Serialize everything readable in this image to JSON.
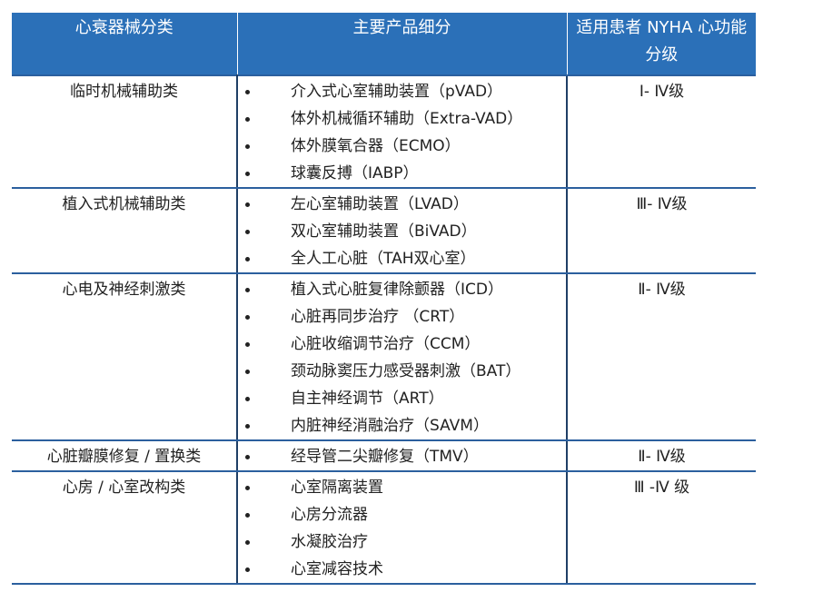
{
  "table": {
    "header": [
      "心衰器械分类",
      "主要产品细分",
      "适用患者 NYHA 心功能分级"
    ],
    "rows": [
      {
        "category": "临时机械辅助类",
        "items": [
          "介入式心室辅助装置（pVAD）",
          "体外机械循环辅助（Extra-VAD）",
          "体外膜氧合器（ECMO）",
          "球囊反搏（IABP）"
        ],
        "grade": "Ⅰ- Ⅳ级"
      },
      {
        "category": "植入式机械辅助类",
        "items": [
          "左心室辅助装置（LVAD）",
          "双心室辅助装置（BiVAD）",
          "全人工心脏（TAH双心室）"
        ],
        "grade": "Ⅲ- Ⅳ级"
      },
      {
        "category": "心电及神经刺激类",
        "items": [
          "植入式心脏复律除颤器（ICD）",
          "心脏再同步治疗 （CRT）",
          "心脏收缩调节治疗（CCM）",
          "颈动脉窦压力感受器刺激（BAT）",
          "自主神经调节（ART）",
          "内脏神经消融治疗（SAVM）"
        ],
        "grade": "Ⅱ- Ⅳ级"
      },
      {
        "category": "心脏瓣膜修复 / 置换类",
        "items": [
          "经导管二尖瓣修复（TMV）"
        ],
        "grade": "Ⅱ- Ⅳ级"
      },
      {
        "category": "心房 / 心室改构类",
        "items": [
          "心室隔离装置",
          "心房分流器",
          "水凝胶治疗",
          "心室减容技术"
        ],
        "grade": "Ⅲ -Ⅳ 级"
      }
    ]
  }
}
